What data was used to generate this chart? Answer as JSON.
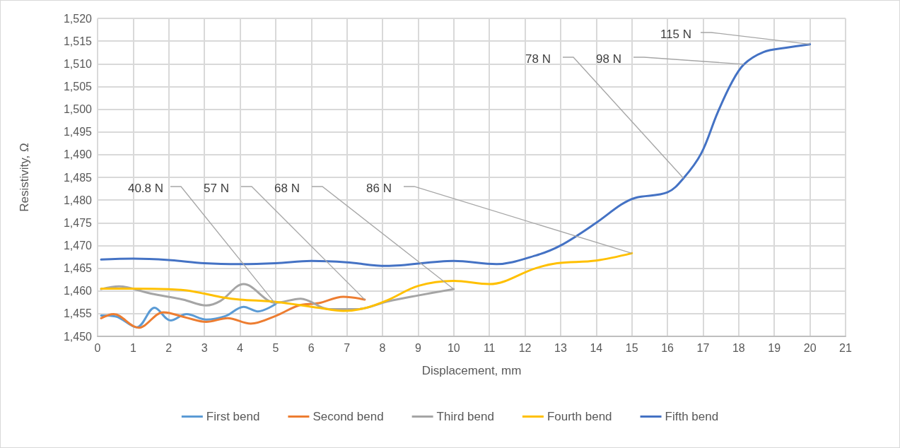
{
  "chart_data": {
    "type": "line",
    "xlabel": "Displacement, mm",
    "ylabel": "Resistivity, Ω",
    "xlim": [
      0,
      21
    ],
    "xticks": [
      0,
      1,
      2,
      3,
      4,
      5,
      6,
      7,
      8,
      9,
      10,
      11,
      12,
      13,
      14,
      15,
      16,
      17,
      18,
      19,
      20,
      21
    ],
    "ylim": [
      1450,
      1520
    ],
    "yticks": [
      {
        "value": 1450,
        "label": "1,450"
      },
      {
        "value": 1455,
        "label": "1,455"
      },
      {
        "value": 1460,
        "label": "1,460"
      },
      {
        "value": 1465,
        "label": "1,465"
      },
      {
        "value": 1470,
        "label": "1,470"
      },
      {
        "value": 1475,
        "label": "1,475"
      },
      {
        "value": 1480,
        "label": "1,480"
      },
      {
        "value": 1485,
        "label": "1,485"
      },
      {
        "value": 1490,
        "label": "1,490"
      },
      {
        "value": 1495,
        "label": "1,495"
      },
      {
        "value": 1500,
        "label": "1,500"
      },
      {
        "value": 1505,
        "label": "1,505"
      },
      {
        "value": 1510,
        "label": "1,510"
      },
      {
        "value": 1515,
        "label": "1,515"
      },
      {
        "value": 1520,
        "label": "1,520"
      }
    ],
    "grid": true,
    "legend": "bottom",
    "marker": "none",
    "line_style": "solid",
    "series": [
      {
        "name": "First bend",
        "color": "#5b9bd5",
        "x": [
          0.1,
          0.5,
          1.1,
          1.6,
          2.05,
          2.5,
          3.05,
          3.6,
          4.1,
          4.5,
          5.0
        ],
        "values": [
          1454.6,
          1454.4,
          1452.0,
          1456.3,
          1453.5,
          1454.9,
          1453.7,
          1454.5,
          1456.5,
          1455.5,
          1457.1
        ]
      },
      {
        "name": "Second bend",
        "color": "#ed7d31",
        "x": [
          0.1,
          0.45,
          1.15,
          1.85,
          2.5,
          3.05,
          3.65,
          4.3,
          5.0,
          5.65,
          6.2,
          6.9,
          7.5
        ],
        "values": [
          1454.0,
          1454.9,
          1451.9,
          1455.3,
          1454.1,
          1453.2,
          1454.0,
          1452.8,
          1454.5,
          1456.8,
          1457.3,
          1458.7,
          1458.1
        ]
      },
      {
        "name": "Third bend",
        "color": "#a5a5a5",
        "x": [
          0.1,
          0.6,
          1.5,
          2.4,
          3.05,
          3.45,
          4.1,
          5.0,
          5.7,
          6.5,
          7.3,
          8.15,
          9.0,
          10.0
        ],
        "values": [
          1460.4,
          1461.0,
          1459.4,
          1458.1,
          1456.8,
          1457.8,
          1461.5,
          1457.4,
          1458.3,
          1456.0,
          1456.0,
          1457.7,
          1459.0,
          1460.4
        ]
      },
      {
        "name": "Fourth bend",
        "color": "#ffc000",
        "x": [
          0.1,
          1,
          2,
          2.5,
          3,
          3.5,
          4,
          5,
          6.2,
          6.9,
          7.5,
          8.15,
          9.0,
          10.0,
          11.0,
          12.3,
          12.9,
          14.0,
          15.0
        ],
        "values": [
          1460.5,
          1460.5,
          1460.4,
          1460.1,
          1459.4,
          1458.6,
          1458.1,
          1457.6,
          1456.3,
          1455.6,
          1456.2,
          1458.0,
          1461.1,
          1462.2,
          1461.5,
          1465.0,
          1466.1,
          1466.7,
          1468.3
        ]
      },
      {
        "name": "Fifth bend",
        "color": "#4472c4",
        "x": [
          0.1,
          1,
          2,
          3,
          4,
          5,
          6,
          7,
          8.1,
          10.0,
          11.2,
          12.3,
          13,
          14,
          14.7,
          15.1,
          16.0,
          16.45,
          16.95,
          17.4,
          17.8,
          18.15,
          18.7,
          19.3,
          20.0
        ],
        "values": [
          1466.9,
          1467.1,
          1466.8,
          1466.1,
          1465.9,
          1466.1,
          1466.6,
          1466.3,
          1465.5,
          1466.6,
          1465.9,
          1467.8,
          1470.0,
          1475.0,
          1479.0,
          1480.5,
          1481.7,
          1484.8,
          1490.3,
          1499.1,
          1505.8,
          1509.9,
          1512.6,
          1513.5,
          1514.3
        ]
      }
    ],
    "annotations": [
      {
        "text": "40.8 N",
        "x": 5.0,
        "y": 1457.1
      },
      {
        "text": "57 N",
        "x": 7.5,
        "y": 1458.1
      },
      {
        "text": "68 N",
        "x": 10.0,
        "y": 1460.4
      },
      {
        "text": "86 N",
        "x": 15.0,
        "y": 1468.3
      },
      {
        "text": "78 N",
        "x": 16.45,
        "y": 1484.8
      },
      {
        "text": "98 N",
        "x": 18.15,
        "y": 1509.9
      },
      {
        "text": "115 N",
        "x": 20.0,
        "y": 1514.3
      }
    ]
  }
}
